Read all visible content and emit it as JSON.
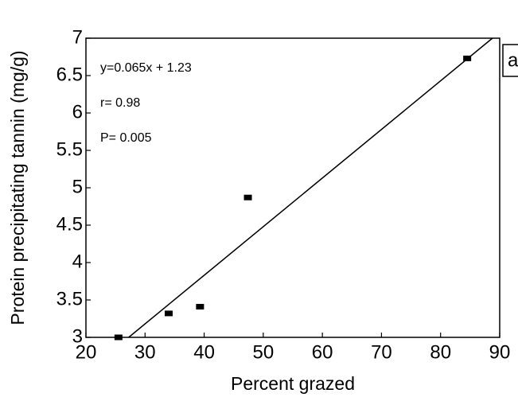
{
  "chart_data": {
    "type": "scatter",
    "x_label": "Percent grazed",
    "y_label": "Protein precipitating tannin (mg/g)",
    "annotations": [
      "y=0.065x + 1.23",
      "r= 0.98",
      "P= 0.005"
    ],
    "panel_label": "a",
    "x": [
      25.5,
      34,
      39.3,
      47.4,
      84.5
    ],
    "values": [
      3.0,
      3.32,
      3.41,
      4.87,
      6.73
    ],
    "color": "#000000",
    "fit_line": {
      "slope": 0.065,
      "intercept": 1.23
    },
    "xlim": [
      20,
      90
    ],
    "xticks": [
      20,
      30,
      40,
      50,
      60,
      70,
      80,
      90
    ],
    "ylim": [
      3,
      7
    ],
    "yticks": [
      3,
      3.5,
      4,
      4.5,
      5,
      5.5,
      6,
      6.5,
      7
    ]
  }
}
